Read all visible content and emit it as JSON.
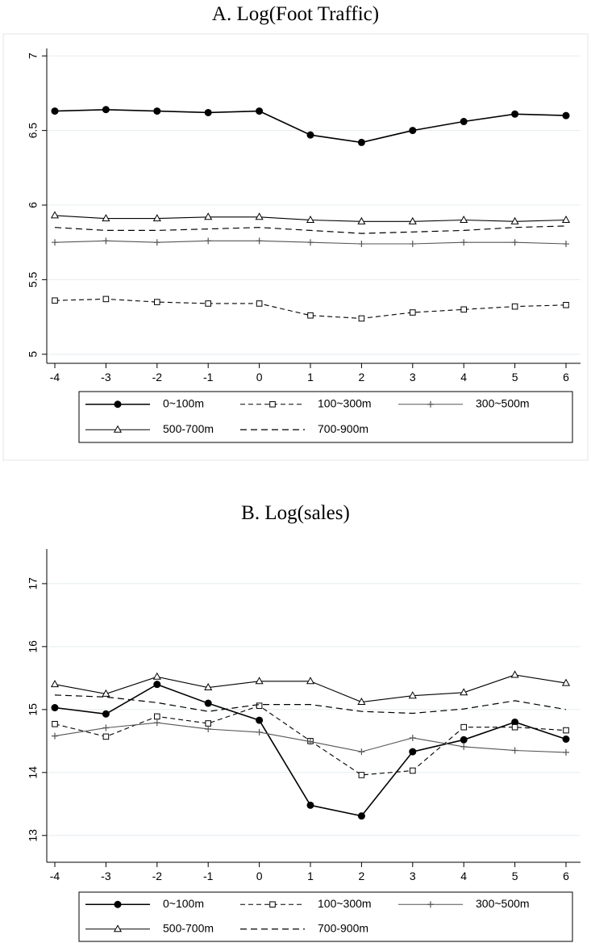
{
  "chart_data": [
    {
      "type": "line",
      "title": "A. Log(Foot Traffic)",
      "xlabel": "",
      "ylabel": "",
      "x": [
        -4,
        -3,
        -2,
        -1,
        0,
        1,
        2,
        3,
        4,
        5,
        6
      ],
      "ylim": [
        4.95,
        7.05
      ],
      "yticks": [
        "5",
        "5.5",
        "6",
        "6.5",
        "7"
      ],
      "grid": true,
      "legend_placement": "bottom",
      "series": [
        {
          "name": "0~100m",
          "style": "filled-circle",
          "values": [
            6.63,
            6.64,
            6.63,
            6.62,
            6.63,
            6.47,
            6.42,
            6.5,
            6.56,
            6.61,
            6.6
          ]
        },
        {
          "name": "100~300m",
          "style": "dashed-square",
          "values": [
            5.36,
            5.37,
            5.35,
            5.34,
            5.34,
            5.26,
            5.24,
            5.28,
            5.3,
            5.32,
            5.33
          ]
        },
        {
          "name": "300~500m",
          "style": "plus",
          "values": [
            5.75,
            5.76,
            5.75,
            5.76,
            5.76,
            5.75,
            5.74,
            5.74,
            5.75,
            5.75,
            5.74
          ]
        },
        {
          "name": "500-700m",
          "style": "triangle",
          "values": [
            5.93,
            5.91,
            5.91,
            5.92,
            5.92,
            5.9,
            5.89,
            5.89,
            5.9,
            5.89,
            5.9
          ]
        },
        {
          "name": "700-900m",
          "style": "dashed",
          "values": [
            5.85,
            5.83,
            5.83,
            5.84,
            5.85,
            5.83,
            5.81,
            5.82,
            5.83,
            5.85,
            5.86
          ]
        }
      ]
    },
    {
      "type": "line",
      "title": "B. Log(sales)",
      "xlabel": "",
      "ylabel": "",
      "x": [
        -4,
        -3,
        -2,
        -1,
        0,
        1,
        2,
        3,
        4,
        5,
        6
      ],
      "ylim": [
        12.6,
        17.55
      ],
      "yticks": [
        "13",
        "14",
        "15",
        "16",
        "17"
      ],
      "grid": true,
      "legend_placement": "bottom",
      "series": [
        {
          "name": "0~100m",
          "style": "filled-circle",
          "values": [
            15.03,
            14.93,
            15.4,
            15.1,
            14.83,
            13.48,
            13.31,
            14.33,
            14.52,
            14.8,
            14.53
          ]
        },
        {
          "name": "100~300m",
          "style": "dashed-square",
          "values": [
            14.77,
            14.57,
            14.89,
            14.78,
            15.06,
            14.5,
            13.96,
            14.03,
            14.72,
            14.72,
            14.67
          ]
        },
        {
          "name": "300~500m",
          "style": "plus",
          "values": [
            14.58,
            14.71,
            14.79,
            14.69,
            14.64,
            14.49,
            14.33,
            14.55,
            14.41,
            14.35,
            14.32
          ]
        },
        {
          "name": "500-700m",
          "style": "triangle",
          "values": [
            15.4,
            15.25,
            15.52,
            15.35,
            15.45,
            15.45,
            15.12,
            15.22,
            15.27,
            15.55,
            15.42
          ]
        },
        {
          "name": "700-900m",
          "style": "dashed",
          "values": [
            15.23,
            15.2,
            15.11,
            14.97,
            15.08,
            15.08,
            14.97,
            14.94,
            15.01,
            15.14,
            15.0
          ]
        }
      ]
    }
  ]
}
